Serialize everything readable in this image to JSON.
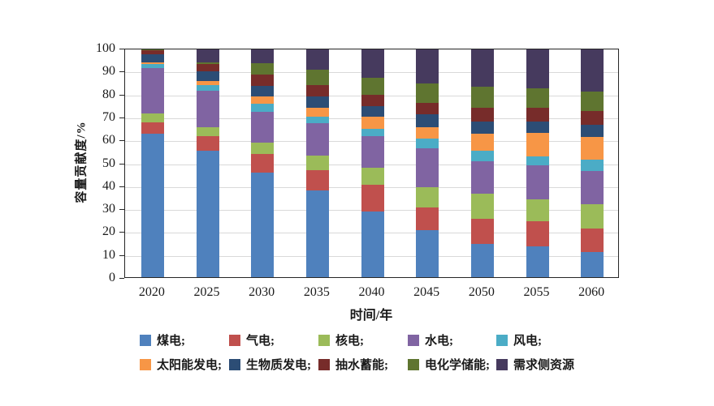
{
  "chart_data": {
    "type": "bar",
    "stacked": true,
    "title": "",
    "xlabel": "时间/年",
    "ylabel": "容量贡献度/%",
    "ylim": [
      0,
      100
    ],
    "y_ticks": [
      0,
      10,
      20,
      30,
      40,
      50,
      60,
      70,
      80,
      90,
      100
    ],
    "grid": true,
    "legend_position": "bottom",
    "categories": [
      "2020",
      "2025",
      "2030",
      "2035",
      "2040",
      "2045",
      "2050",
      "2055",
      "2060"
    ],
    "series": [
      {
        "name": "煤电",
        "legend_label": "煤电;",
        "color": "#4F81BD",
        "values": [
          63,
          55.5,
          46,
          38,
          29,
          20.5,
          14.5,
          13.5,
          11
        ]
      },
      {
        "name": "气电",
        "legend_label": "气电;",
        "color": "#C0504D",
        "values": [
          5,
          6.5,
          8,
          9,
          11.5,
          10,
          11,
          11,
          10.5
        ]
      },
      {
        "name": "核电",
        "legend_label": "核电;",
        "color": "#9BBB59",
        "values": [
          4,
          4,
          5,
          6.5,
          7.5,
          9,
          11,
          9.5,
          10.5
        ]
      },
      {
        "name": "水电",
        "legend_label": "水电;",
        "color": "#8064A2",
        "values": [
          20,
          16,
          13.5,
          14,
          14,
          17,
          14.5,
          15,
          14.5
        ]
      },
      {
        "name": "风电",
        "legend_label": "风电;",
        "color": "#4BACC6",
        "values": [
          1.5,
          2.5,
          3.5,
          3,
          3,
          4.5,
          4.5,
          4,
          5
        ]
      },
      {
        "name": "太阳能发电",
        "legend_label": "太阳能发电;",
        "color": "#F79646",
        "values": [
          1,
          1.5,
          3.5,
          4,
          5.5,
          5,
          7.5,
          10.5,
          10
        ]
      },
      {
        "name": "生物质发电",
        "legend_label": "生物质发电;",
        "color": "#2C4D75",
        "values": [
          3.5,
          4.5,
          4.5,
          5,
          4.5,
          5.5,
          5.5,
          5,
          5.5
        ]
      },
      {
        "name": "抽水蓄能",
        "legend_label": "抽水蓄能;",
        "color": "#772C2A",
        "values": [
          1.5,
          3,
          5,
          5,
          5,
          5,
          6,
          6,
          6
        ]
      },
      {
        "name": "电化学储能",
        "legend_label": "电化学储能;",
        "color": "#5F7530",
        "values": [
          0.5,
          1,
          5,
          6.5,
          7.5,
          8.5,
          9,
          8.5,
          8.5
        ]
      },
      {
        "name": "需求侧资源",
        "legend_label": "需求侧资源",
        "color": "#463A5E",
        "values": [
          0,
          5.5,
          6,
          9,
          12.5,
          15,
          16.5,
          17,
          18.5
        ]
      }
    ]
  },
  "layout_text": {
    "y_axis_title": "容量贡献度/%",
    "x_axis_title": "时间/年"
  }
}
